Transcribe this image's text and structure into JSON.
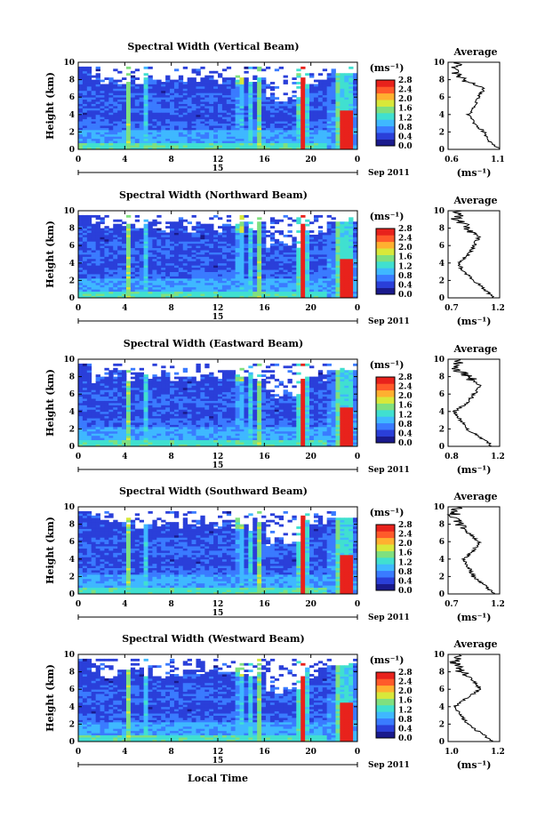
{
  "figure": {
    "xlabel_bottom": "Local Time",
    "date_label": "Sep 2011",
    "day_label": "15",
    "x_ticks": [
      "0",
      "4",
      "8",
      "12",
      "16",
      "20",
      "0"
    ],
    "y_ticks": [
      "0",
      "2",
      "4",
      "6",
      "8",
      "10"
    ],
    "ylabel": "Height (km)",
    "cbar_unit": "(ms⁻¹)",
    "cbar_ticks": [
      "0.0",
      "0.4",
      "0.8",
      "1.2",
      "1.6",
      "2.0",
      "2.4",
      "2.8"
    ],
    "avg_title": "Average",
    "avg_unit": "(ms⁻¹)"
  },
  "chart_data": [
    {
      "type": "heatmap",
      "title": "Spectral Width (Vertical Beam)",
      "xlabel": "",
      "ylabel": "Height (km)",
      "xlim": [
        0,
        24
      ],
      "ylim": [
        0,
        10
      ],
      "zlim": [
        0,
        2.8
      ],
      "colorbar_unit": "ms-1",
      "profile": {
        "title": "Average",
        "xlim": [
          0.6,
          1.1
        ],
        "xticks": [
          "0.6",
          "1.1"
        ],
        "xlabel": "(ms⁻¹)",
        "heights": [
          0,
          1,
          2,
          3,
          4,
          5,
          6,
          7,
          8,
          9,
          10
        ],
        "values": [
          1.1,
          1.0,
          0.95,
          0.85,
          0.8,
          0.85,
          0.9,
          0.95,
          0.75,
          0.65,
          0.7
        ]
      }
    },
    {
      "type": "heatmap",
      "title": "Spectral Width (Northward Beam)",
      "xlabel": "",
      "ylabel": "Height (km)",
      "xlim": [
        0,
        24
      ],
      "ylim": [
        0,
        10
      ],
      "zlim": [
        0,
        2.8
      ],
      "colorbar_unit": "ms-1",
      "profile": {
        "title": "Average",
        "xlim": [
          0.7,
          1.2
        ],
        "xticks": [
          "0.7",
          "1.2"
        ],
        "xlabel": "(ms⁻¹)",
        "heights": [
          0,
          1,
          2,
          3,
          4,
          5,
          6,
          7,
          8,
          9,
          10
        ],
        "values": [
          1.15,
          1.05,
          0.95,
          0.85,
          0.8,
          0.9,
          0.95,
          1.0,
          0.9,
          0.78,
          0.8
        ]
      }
    },
    {
      "type": "heatmap",
      "title": "Spectral Width (Eastward Beam)",
      "xlabel": "",
      "ylabel": "Height (km)",
      "xlim": [
        0,
        24
      ],
      "ylim": [
        0,
        10
      ],
      "zlim": [
        0,
        2.8
      ],
      "colorbar_unit": "ms-1",
      "profile": {
        "title": "Average",
        "xlim": [
          0.8,
          1.2
        ],
        "xticks": [
          "0.8",
          "1.2"
        ],
        "xlabel": "(ms⁻¹)",
        "heights": [
          0,
          1,
          2,
          3,
          4,
          5,
          6,
          7,
          8,
          9,
          10
        ],
        "values": [
          1.15,
          1.05,
          0.95,
          0.9,
          0.85,
          0.95,
          1.0,
          1.05,
          0.95,
          0.85,
          0.9
        ]
      }
    },
    {
      "type": "heatmap",
      "title": "Spectral Width (Southward Beam)",
      "xlabel": "",
      "ylabel": "Height (km)",
      "xlim": [
        0,
        24
      ],
      "ylim": [
        0,
        10
      ],
      "zlim": [
        0,
        2.8
      ],
      "colorbar_unit": "ms-1",
      "profile": {
        "title": "Average",
        "xlim": [
          0.7,
          1.2
        ],
        "xticks": [
          "0.7",
          "1.2"
        ],
        "xlabel": "(ms⁻¹)",
        "heights": [
          0,
          1,
          2,
          3,
          4,
          5,
          6,
          7,
          8,
          9,
          10
        ],
        "values": [
          1.15,
          1.05,
          0.95,
          0.9,
          0.85,
          0.95,
          1.0,
          0.9,
          0.8,
          0.75,
          0.8
        ]
      }
    },
    {
      "type": "heatmap",
      "title": "Spectral Width (Westward Beam)",
      "xlabel": "Local Time",
      "ylabel": "Height (km)",
      "xlim": [
        0,
        24
      ],
      "ylim": [
        0,
        10
      ],
      "zlim": [
        0,
        2.8
      ],
      "colorbar_unit": "ms-1",
      "profile": {
        "title": "Average",
        "xlim": [
          0.8,
          1.2
        ],
        "xticks": [
          "1.0",
          "1.2"
        ],
        "xlabel": "(ms⁻¹)",
        "heights": [
          0,
          1,
          2,
          3,
          4,
          5,
          6,
          7,
          8,
          9,
          10
        ],
        "values": [
          1.15,
          1.05,
          0.95,
          0.9,
          0.85,
          0.95,
          1.05,
          1.0,
          0.9,
          0.85,
          0.9
        ]
      }
    }
  ],
  "colors": {
    "scale": [
      "#1a1a8c",
      "#2a3fd9",
      "#3a7bff",
      "#3fb8ff",
      "#40e0d0",
      "#7fe07f",
      "#d8e83a",
      "#ffb030",
      "#ff5a2a",
      "#e8221c"
    ]
  }
}
